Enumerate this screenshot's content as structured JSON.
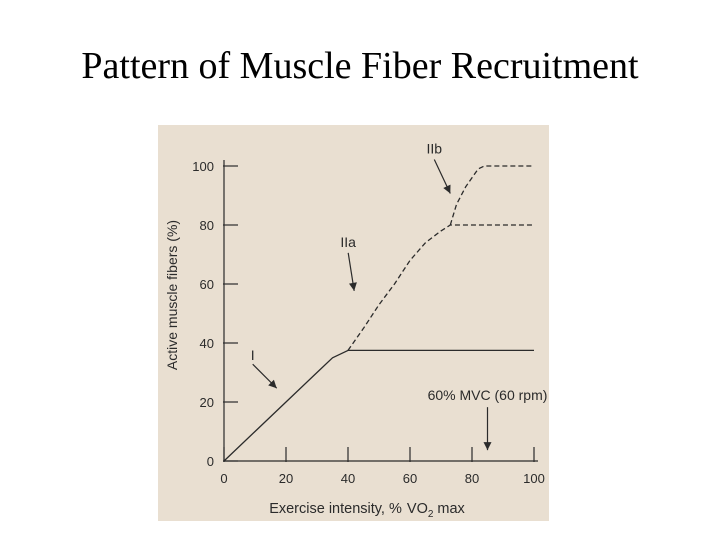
{
  "slide": {
    "title": "Pattern of Muscle Fiber Recruitment"
  },
  "colors": {
    "figure_background": "#e9dfd1",
    "ink": "#2b2b2b"
  },
  "chart_data": {
    "type": "line",
    "title": "",
    "xlabel_prefix": "Exercise intensity, %",
    "xlabel_vo2": "V",
    "xlabel_sub": "O",
    "xlabel_sub2": "2",
    "xlabel_suffix": "max",
    "ylabel": "Active muscle fibers (%)",
    "xlim": [
      0,
      100
    ],
    "ylim": [
      0,
      100
    ],
    "xticks": [
      0,
      20,
      40,
      60,
      80,
      100
    ],
    "yticks": [
      0,
      20,
      40,
      60,
      80,
      100
    ],
    "grid": false,
    "series": [
      {
        "name": "I",
        "style": "solid",
        "points": [
          [
            0,
            0
          ],
          [
            10,
            10
          ],
          [
            20,
            20
          ],
          [
            30,
            30
          ],
          [
            35,
            35
          ],
          [
            40,
            37.5
          ],
          [
            100,
            37.5
          ]
        ]
      },
      {
        "name": "IIa",
        "style": "dashed",
        "points": [
          [
            40,
            37.5
          ],
          [
            45,
            45
          ],
          [
            50,
            53
          ],
          [
            55,
            60
          ],
          [
            60,
            68
          ],
          [
            65,
            74
          ],
          [
            70,
            78
          ],
          [
            73,
            80
          ],
          [
            100,
            80
          ]
        ]
      },
      {
        "name": "IIb",
        "style": "dashed",
        "points": [
          [
            73,
            80
          ],
          [
            75,
            87
          ],
          [
            78,
            93
          ],
          [
            82,
            99
          ],
          [
            84,
            100
          ],
          [
            100,
            100
          ]
        ]
      }
    ],
    "annotations": [
      {
        "text": "I",
        "points_to": [
          17,
          24
        ]
      },
      {
        "text": "IIa",
        "points_to": [
          42,
          57
        ]
      },
      {
        "text": "IIb",
        "points_to": [
          73,
          90
        ]
      },
      {
        "text": "60% MVC (60 rpm)",
        "points_to": [
          85,
          3
        ]
      }
    ]
  }
}
